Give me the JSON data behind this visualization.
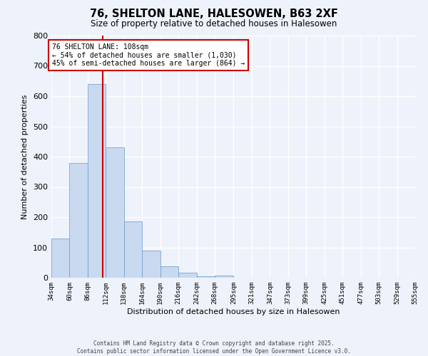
{
  "title": "76, SHELTON LANE, HALESOWEN, B63 2XF",
  "subtitle": "Size of property relative to detached houses in Halesowen",
  "xlabel": "Distribution of detached houses by size in Halesowen",
  "ylabel": "Number of detached properties",
  "bar_values": [
    130,
    380,
    640,
    430,
    185,
    90,
    37,
    16,
    5,
    7,
    0,
    0,
    0,
    0,
    0,
    0,
    0,
    0,
    0,
    0
  ],
  "bin_edges": [
    34,
    60,
    86,
    112,
    138,
    164,
    190,
    216,
    242,
    268,
    295,
    321,
    347,
    373,
    399,
    425,
    451,
    477,
    503,
    529,
    555
  ],
  "tick_labels": [
    "34sqm",
    "60sqm",
    "86sqm",
    "112sqm",
    "138sqm",
    "164sqm",
    "190sqm",
    "216sqm",
    "242sqm",
    "268sqm",
    "295sqm",
    "321sqm",
    "347sqm",
    "373sqm",
    "399sqm",
    "425sqm",
    "451sqm",
    "477sqm",
    "503sqm",
    "529sqm",
    "555sqm"
  ],
  "vline_x": 108,
  "bar_color": "#c9d9f0",
  "bar_edge_color": "#6699cc",
  "vline_color": "#cc0000",
  "annotation_text": "76 SHELTON LANE: 108sqm\n← 54% of detached houses are smaller (1,030)\n45% of semi-detached houses are larger (864) →",
  "annotation_box_color": "#ffffff",
  "annotation_box_edge_color": "#cc0000",
  "ylim": [
    0,
    800
  ],
  "yticks": [
    0,
    100,
    200,
    300,
    400,
    500,
    600,
    700,
    800
  ],
  "background_color": "#eef2fa",
  "grid_color": "#ffffff",
  "footer_line1": "Contains HM Land Registry data © Crown copyright and database right 2025.",
  "footer_line2": "Contains public sector information licensed under the Open Government Licence v3.0."
}
